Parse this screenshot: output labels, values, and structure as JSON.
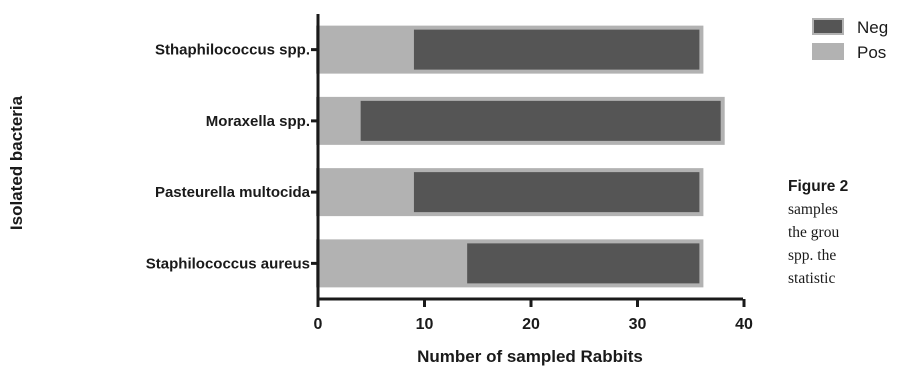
{
  "chart_data": {
    "type": "bar",
    "orientation": "horizontal",
    "stacked": true,
    "categories": [
      "Sthaphilococcus spp.",
      "Moraxella spp.",
      "Pasteurella multocida",
      "Staphilococcus aureus"
    ],
    "series": [
      {
        "name": "Pos",
        "color": "#b2b2b2",
        "values": [
          9,
          4,
          9,
          14
        ]
      },
      {
        "name": "Neg",
        "color": "#555555",
        "values": [
          27,
          34,
          27,
          22
        ]
      }
    ],
    "xlabel": "Number of sampled Rabbits",
    "ylabel": "Isolated bacteria",
    "xlim": [
      0,
      40
    ],
    "xticks": [
      "0",
      "10",
      "20",
      "30",
      "40"
    ],
    "grid": false,
    "legend_position": "right"
  },
  "legend": [
    {
      "label": "Neg",
      "color": "#555555"
    },
    {
      "label": "Pos",
      "color": "#b2b2b2"
    }
  ],
  "caption_lines": [
    {
      "head": "Figure 2",
      "text": ""
    },
    {
      "head": "",
      "text": "samples"
    },
    {
      "head": "",
      "text": "the grou"
    },
    {
      "head": "",
      "text": "spp. the"
    },
    {
      "head": "",
      "text": "statistic"
    }
  ]
}
